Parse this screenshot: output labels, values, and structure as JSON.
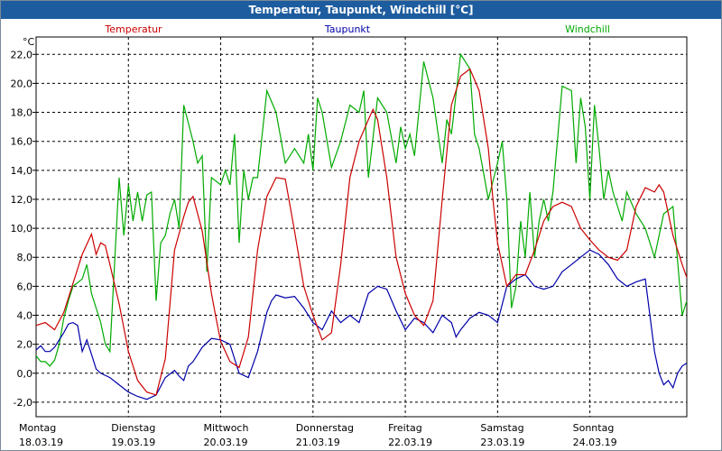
{
  "chart_data": {
    "type": "line",
    "title": "Temperatur, Taupunkt, Windchill [°C]",
    "ylabel": "°C",
    "ylim": [
      -3,
      23.2
    ],
    "yticks": [
      "-2,0",
      "0,0",
      "2,0",
      "4,0",
      "6,0",
      "8,0",
      "10,0",
      "12,0",
      "14,0",
      "16,0",
      "18,0",
      "20,0",
      "22,0"
    ],
    "ytick_values": [
      -2,
      0,
      2,
      4,
      6,
      8,
      10,
      12,
      14,
      16,
      18,
      20,
      22
    ],
    "xlim": [
      0,
      7.05
    ],
    "days": [
      {
        "weekday": "Montag",
        "date": "18.03.19"
      },
      {
        "weekday": "Dienstag",
        "date": "19.03.19"
      },
      {
        "weekday": "Mittwoch",
        "date": "20.03.19"
      },
      {
        "weekday": "Donnerstag",
        "date": "21.03.19"
      },
      {
        "weekday": "Freitag",
        "date": "22.03.19"
      },
      {
        "weekday": "Samstag",
        "date": "23.03.19"
      },
      {
        "weekday": "Sonntag",
        "date": "24.03.19"
      }
    ],
    "grid": true,
    "series": [
      {
        "name": "Temperatur",
        "color": "#cc0000",
        "x": [
          0,
          0.1,
          0.2,
          0.3,
          0.4,
          0.5,
          0.6,
          0.65,
          0.7,
          0.75,
          0.8,
          0.9,
          1.0,
          1.1,
          1.2,
          1.3,
          1.4,
          1.5,
          1.6,
          1.65,
          1.7,
          1.8,
          1.9,
          1.95,
          2.0,
          2.1,
          2.2,
          2.3,
          2.4,
          2.5,
          2.6,
          2.7,
          2.8,
          2.9,
          3.0,
          3.1,
          3.2,
          3.3,
          3.4,
          3.5,
          3.6,
          3.65,
          3.7,
          3.8,
          3.9,
          4.0,
          4.1,
          4.2,
          4.3,
          4.4,
          4.5,
          4.6,
          4.7,
          4.8,
          4.9,
          4.95,
          5.0,
          5.1,
          5.2,
          5.3,
          5.4,
          5.5,
          5.6,
          5.7,
          5.8,
          5.9,
          6.0,
          6.1,
          6.2,
          6.3,
          6.4,
          6.5,
          6.6,
          6.7,
          6.75,
          6.8,
          6.9,
          7.0,
          7.05
        ],
        "values": [
          3.3,
          3.5,
          3.0,
          4.2,
          6.2,
          8.2,
          9.6,
          8.2,
          9.0,
          8.8,
          7.5,
          4.8,
          1.5,
          -0.5,
          -1.3,
          -1.5,
          1.0,
          8.5,
          10.8,
          11.8,
          12.2,
          9.8,
          5.5,
          3.8,
          2.2,
          0.8,
          0.4,
          2.5,
          8.5,
          12.2,
          13.5,
          13.4,
          9.8,
          6.0,
          4.0,
          2.3,
          2.8,
          7.5,
          13.5,
          16.0,
          17.5,
          18.2,
          17.5,
          13.5,
          8.0,
          5.5,
          4.0,
          3.3,
          5.0,
          12.0,
          18.5,
          20.5,
          21.0,
          19.5,
          15.5,
          12.0,
          9.0,
          6.0,
          6.8,
          6.8,
          8.5,
          10.5,
          11.5,
          11.8,
          11.5,
          10.0,
          9.2,
          8.5,
          8.0,
          7.8,
          8.5,
          11.5,
          12.8,
          12.5,
          13.0,
          12.5,
          9.5,
          7.5,
          6.6
        ]
      },
      {
        "name": "Taupunkt",
        "color": "#0000aa",
        "x": [
          0,
          0.05,
          0.1,
          0.15,
          0.2,
          0.3,
          0.35,
          0.4,
          0.45,
          0.5,
          0.55,
          0.6,
          0.65,
          0.7,
          0.8,
          0.9,
          1.0,
          1.1,
          1.2,
          1.3,
          1.4,
          1.5,
          1.55,
          1.6,
          1.65,
          1.7,
          1.8,
          1.9,
          2.0,
          2.1,
          2.2,
          2.3,
          2.4,
          2.5,
          2.55,
          2.6,
          2.7,
          2.8,
          2.9,
          3.0,
          3.1,
          3.2,
          3.3,
          3.4,
          3.5,
          3.6,
          3.7,
          3.8,
          3.9,
          4.0,
          4.1,
          4.2,
          4.3,
          4.4,
          4.5,
          4.55,
          4.6,
          4.7,
          4.8,
          4.9,
          5.0,
          5.1,
          5.2,
          5.3,
          5.4,
          5.5,
          5.6,
          5.7,
          5.8,
          5.9,
          6.0,
          6.1,
          6.2,
          6.3,
          6.4,
          6.5,
          6.6,
          6.7,
          6.75,
          6.8,
          6.85,
          6.9,
          6.95,
          7.0,
          7.05
        ],
        "values": [
          1.6,
          1.9,
          1.5,
          1.5,
          1.8,
          2.8,
          3.4,
          3.5,
          3.3,
          1.5,
          2.3,
          1.3,
          0.3,
          0.0,
          -0.3,
          -0.8,
          -1.3,
          -1.6,
          -1.8,
          -1.5,
          -0.3,
          0.2,
          -0.2,
          -0.5,
          0.5,
          0.8,
          1.8,
          2.4,
          2.3,
          2.0,
          0.0,
          -0.3,
          1.5,
          4.2,
          5.0,
          5.4,
          5.2,
          5.3,
          4.5,
          3.5,
          3.0,
          4.3,
          3.5,
          4.0,
          3.5,
          5.5,
          6.0,
          5.8,
          4.3,
          3.0,
          3.8,
          3.5,
          2.8,
          4.0,
          3.5,
          2.5,
          3.0,
          3.8,
          4.2,
          4.0,
          3.5,
          6.0,
          6.5,
          6.8,
          6.0,
          5.8,
          6.0,
          7.0,
          7.5,
          8.0,
          8.5,
          8.2,
          7.5,
          6.5,
          6.0,
          6.3,
          6.5,
          1.5,
          0.0,
          -0.8,
          -0.5,
          -1.0,
          0.0,
          0.5,
          0.7
        ]
      },
      {
        "name": "Windchill",
        "color": "#00aa00",
        "x": [
          0,
          0.05,
          0.1,
          0.15,
          0.2,
          0.25,
          0.3,
          0.35,
          0.4,
          0.5,
          0.55,
          0.6,
          0.7,
          0.75,
          0.8,
          0.9,
          0.95,
          1.0,
          1.05,
          1.1,
          1.15,
          1.2,
          1.25,
          1.3,
          1.35,
          1.4,
          1.45,
          1.5,
          1.55,
          1.6,
          1.7,
          1.75,
          1.8,
          1.85,
          1.9,
          2.0,
          2.05,
          2.1,
          2.15,
          2.2,
          2.25,
          2.3,
          2.35,
          2.4,
          2.5,
          2.6,
          2.7,
          2.8,
          2.9,
          2.95,
          3.0,
          3.05,
          3.1,
          3.2,
          3.3,
          3.4,
          3.5,
          3.55,
          3.6,
          3.7,
          3.75,
          3.8,
          3.9,
          3.95,
          4.0,
          4.05,
          4.1,
          4.2,
          4.3,
          4.4,
          4.45,
          4.5,
          4.6,
          4.7,
          4.75,
          4.8,
          4.9,
          5.0,
          5.05,
          5.1,
          5.15,
          5.2,
          5.25,
          5.3,
          5.35,
          5.4,
          5.45,
          5.5,
          5.55,
          5.6,
          5.7,
          5.8,
          5.85,
          5.9,
          5.95,
          6.0,
          6.05,
          6.1,
          6.15,
          6.2,
          6.25,
          6.3,
          6.35,
          6.4,
          6.5,
          6.6,
          6.7,
          6.8,
          6.9,
          7.0,
          7.05
        ],
        "values": [
          1.2,
          0.8,
          0.8,
          0.5,
          0.9,
          2.0,
          3.8,
          5.0,
          6.0,
          6.5,
          7.5,
          5.5,
          3.5,
          2.0,
          1.5,
          13.5,
          9.5,
          13.0,
          10.5,
          12.5,
          10.5,
          12.3,
          12.5,
          5.0,
          9.0,
          9.5,
          11.0,
          12.0,
          10.0,
          18.5,
          16.0,
          14.5,
          15.0,
          7.0,
          13.5,
          13.0,
          14.0,
          13.0,
          16.5,
          9.0,
          14.0,
          12.0,
          13.5,
          13.5,
          19.5,
          18.0,
          14.5,
          15.5,
          14.5,
          16.5,
          14.0,
          19.0,
          18.0,
          14.2,
          16.0,
          18.5,
          18.0,
          19.5,
          13.5,
          19.0,
          18.5,
          18.0,
          14.5,
          17.0,
          15.5,
          16.5,
          15.0,
          21.5,
          19.0,
          14.5,
          17.5,
          16.5,
          22.0,
          21.0,
          16.5,
          15.5,
          12.0,
          14.5,
          16.0,
          12.0,
          4.5,
          6.0,
          10.5,
          8.0,
          12.5,
          8.0,
          10.5,
          12.0,
          10.5,
          12.5,
          19.8,
          19.5,
          14.5,
          19.0,
          17.0,
          12.0,
          18.5,
          15.5,
          12.0,
          14.0,
          12.5,
          11.5,
          10.5,
          12.5,
          11.0,
          10.0,
          8.0,
          11.0,
          11.5,
          4.0,
          5.0
        ]
      }
    ]
  }
}
